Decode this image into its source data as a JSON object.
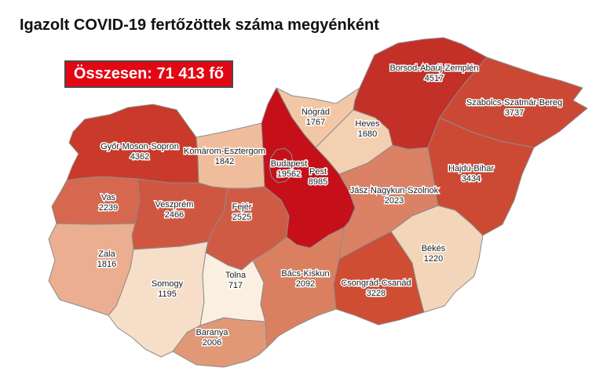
{
  "title": "Igazolt COVID-19 fertőzöttek száma megyénként",
  "summary": {
    "label": "Összesen: 71 413 fő"
  },
  "colors": {
    "summary_bg": "#e30613",
    "summary_text": "#ffffff",
    "map_border": "#8c8c8c",
    "scale_min_color": "#fbefe2",
    "scale_max_color": "#c5101a"
  },
  "counties": [
    {
      "id": "gyms",
      "name": "Győr-Moson-Sopron",
      "value": "4362",
      "color": "#c93a2b"
    },
    {
      "id": "ke",
      "name": "Komárom-Esztergom",
      "value": "1842",
      "color": "#f0bd9c"
    },
    {
      "id": "vas",
      "name": "Vas",
      "value": "2239",
      "color": "#d5684e"
    },
    {
      "id": "veszprem",
      "name": "Veszprém",
      "value": "2466",
      "color": "#cf5742"
    },
    {
      "id": "zala",
      "name": "Zala",
      "value": "1816",
      "color": "#ebae90"
    },
    {
      "id": "somogy",
      "name": "Somogy",
      "value": "1195",
      "color": "#f6dec8"
    },
    {
      "id": "fejer",
      "name": "Fejér",
      "value": "2525",
      "color": "#d05b44"
    },
    {
      "id": "tolna",
      "name": "Tolna",
      "value": "717",
      "color": "#fbefe2"
    },
    {
      "id": "baranya",
      "name": "Baranya",
      "value": "2006",
      "color": "#e09877"
    },
    {
      "id": "bacs",
      "name": "Bács-Kiskun",
      "value": "2092",
      "color": "#da8061"
    },
    {
      "id": "csongrad",
      "name": "Csongrád-Csanád",
      "value": "3228",
      "color": "#ce4d33"
    },
    {
      "id": "bekes",
      "name": "Békés",
      "value": "1220",
      "color": "#f3d5ba"
    },
    {
      "id": "jnsz",
      "name": "Jász-Nagykun-Szolnok",
      "value": "2023",
      "color": "#db8165"
    },
    {
      "id": "heves",
      "name": "Heves",
      "value": "1680",
      "color": "#f4d0b2"
    },
    {
      "id": "nograd",
      "name": "Nógrád",
      "value": "1767",
      "color": "#f2c7a6"
    },
    {
      "id": "pest",
      "name": "Pest",
      "value": "8985",
      "color": "#c5101a"
    },
    {
      "id": "budapest",
      "name": "Budapest",
      "value": "19562",
      "color": "#c5101a"
    },
    {
      "id": "borsod",
      "name": "Borsod-Abaúj-Zemplén",
      "value": "4517",
      "color": "#c33028"
    },
    {
      "id": "szabolcs",
      "name": "Szabolcs-Szatmár-Bereg",
      "value": "3737",
      "color": "#cb4934"
    },
    {
      "id": "hajdu",
      "name": "Hajdú-Bihar",
      "value": "3434",
      "color": "#cc4a34"
    }
  ],
  "chart_data": {
    "type": "heatmap",
    "subtype": "choropleth-map",
    "region": "Hungary, megyék (counties)",
    "title": "Igazolt COVID-19 fertőzöttek száma megyénként",
    "unit": "fő",
    "total_label": "Összesen: 71 413 fő",
    "total_value": 71413,
    "legend": "none",
    "categories": [
      "Győr-Moson-Sopron",
      "Komárom-Esztergom",
      "Vas",
      "Veszprém",
      "Zala",
      "Somogy",
      "Fejér",
      "Tolna",
      "Baranya",
      "Bács-Kiskun",
      "Csongrád-Csanád",
      "Békés",
      "Jász-Nagykun-Szolnok",
      "Heves",
      "Nógrád",
      "Pest",
      "Budapest",
      "Borsod-Abaúj-Zemplén",
      "Szabolcs-Szatmár-Bereg",
      "Hajdú-Bihar"
    ],
    "values": [
      4362,
      1842,
      2239,
      2466,
      1816,
      1195,
      2525,
      717,
      2006,
      2092,
      3228,
      1220,
      2023,
      1680,
      1767,
      8985,
      19562,
      4517,
      3737,
      3434
    ]
  }
}
